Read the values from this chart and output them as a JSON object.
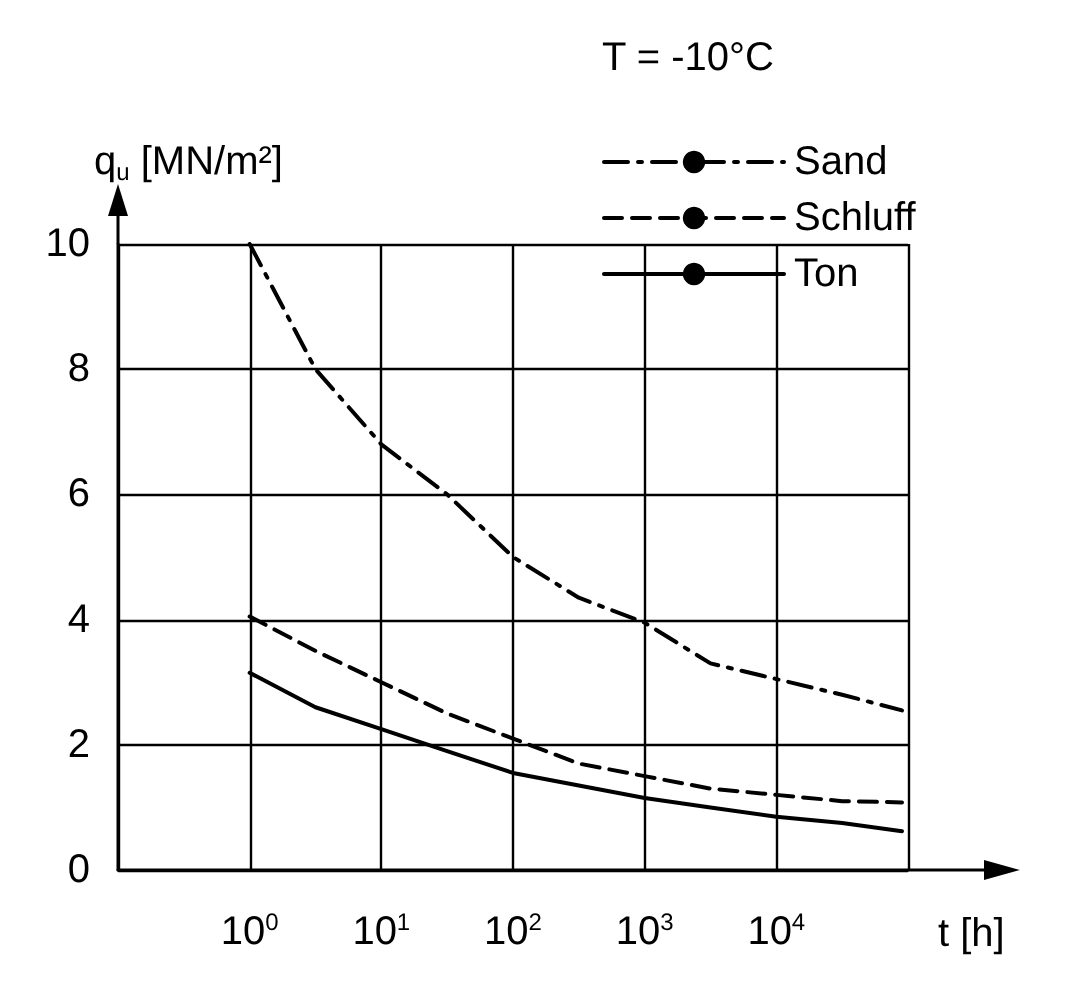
{
  "chart_data": {
    "type": "line",
    "legend_title": "T = -10°C",
    "xlabel": "t [h]",
    "ylabel": "q$_{u}$ [MN/m²]",
    "log": "x",
    "xlim": [
      0.1,
      100000
    ],
    "xticks": [
      {
        "value": 0.1,
        "label": null
      },
      {
        "value": 1,
        "label": "10$^{0}$"
      },
      {
        "value": 10,
        "label": "10$^{1}$"
      },
      {
        "value": 100,
        "label": "10$^{2}$"
      },
      {
        "value": 1000,
        "label": "10$^{3}$"
      },
      {
        "value": 10000,
        "label": "10$^{4}$"
      },
      {
        "value": 100000,
        "label": null
      }
    ],
    "ylim": [
      0,
      10
    ],
    "yticks": [
      0,
      2,
      4,
      6,
      8,
      10
    ],
    "grid": true,
    "legend": "top right",
    "marker": "none",
    "series": [
      {
        "name": "Sand",
        "color": "#000000",
        "line_style": "dashdot",
        "x": [
          1,
          3.16,
          10,
          31.6,
          100,
          316,
          1000,
          3162,
          10000,
          31623,
          90000
        ],
        "values": [
          10,
          8.0,
          6.8,
          6.0,
          5.0,
          4.35,
          3.95,
          3.3,
          3.05,
          2.8,
          2.55
        ]
      },
      {
        "name": "Schluff",
        "color": "#000000",
        "line_style": "dashed",
        "x": [
          1,
          3.16,
          10,
          31.6,
          100,
          316,
          1000,
          3162,
          10000,
          31623,
          90000
        ],
        "values": [
          4.05,
          3.5,
          3.0,
          2.5,
          2.1,
          1.7,
          1.5,
          1.3,
          1.2,
          1.1,
          1.08
        ]
      },
      {
        "name": "Ton",
        "color": "#000000",
        "line_style": "solid",
        "x": [
          1,
          3.16,
          10,
          31.6,
          100,
          316,
          1000,
          3162,
          10000,
          31623,
          90000
        ],
        "values": [
          3.15,
          2.6,
          2.25,
          1.9,
          1.55,
          1.35,
          1.15,
          1.0,
          0.85,
          0.75,
          0.62
        ]
      }
    ]
  }
}
